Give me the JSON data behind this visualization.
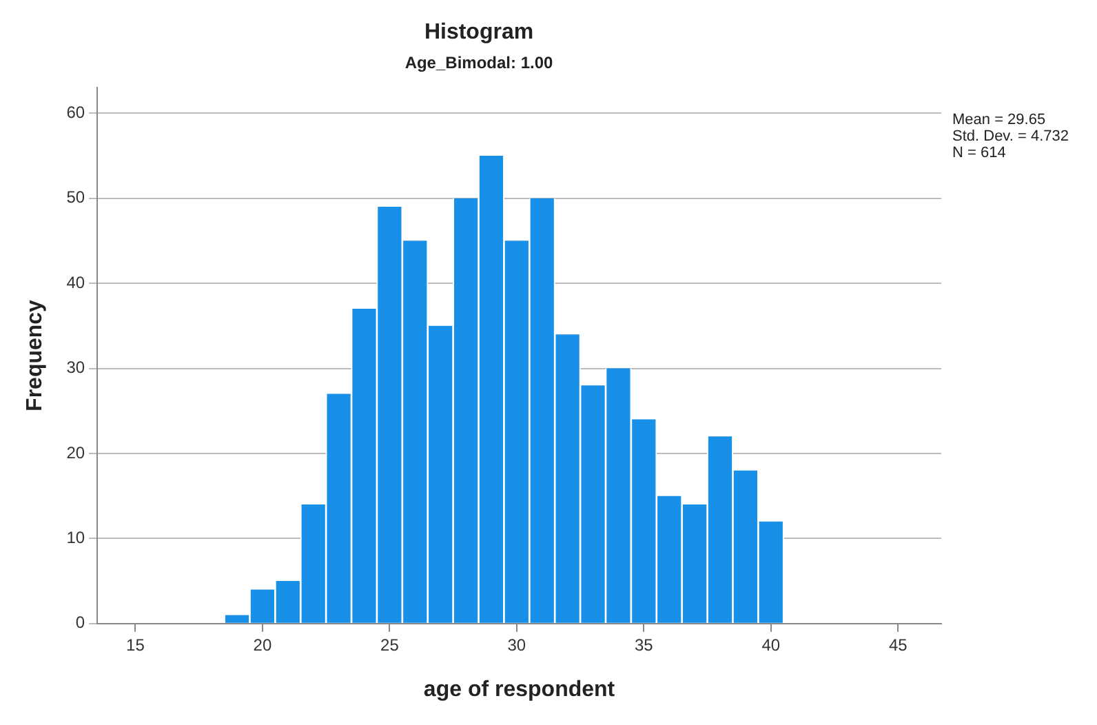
{
  "chart_data": {
    "type": "histogram",
    "title": "Histogram",
    "subtitle": "Age_Bimodal: 1.00",
    "xlabel": "age of respondent",
    "ylabel": "Frequency",
    "bins": [
      18.5,
      19.5,
      20.5,
      21.5,
      22.5,
      23.5,
      24.5,
      25.5,
      26.5,
      27.5,
      28.5,
      29.5,
      30.5,
      31.5,
      32.5,
      33.5,
      34.5,
      35.5,
      36.5,
      37.5,
      38.5,
      39.5,
      40.5
    ],
    "values": [
      1,
      4,
      5,
      14,
      27,
      37,
      49,
      45,
      35,
      50,
      55,
      45,
      50,
      34,
      28,
      30,
      24,
      15,
      14,
      22,
      18,
      12
    ],
    "color": "#1990e8",
    "xlim": [
      13.5,
      46.7
    ],
    "xticks": [
      15,
      20,
      25,
      30,
      35,
      40,
      45
    ],
    "ylim": [
      0,
      63
    ],
    "yticks": [
      0,
      10,
      20,
      30,
      40,
      50,
      60
    ],
    "grid": "y",
    "legend": false,
    "annotations": [
      "Mean = 29.65",
      "Std. Dev. = 4.732",
      "N = 614"
    ]
  }
}
